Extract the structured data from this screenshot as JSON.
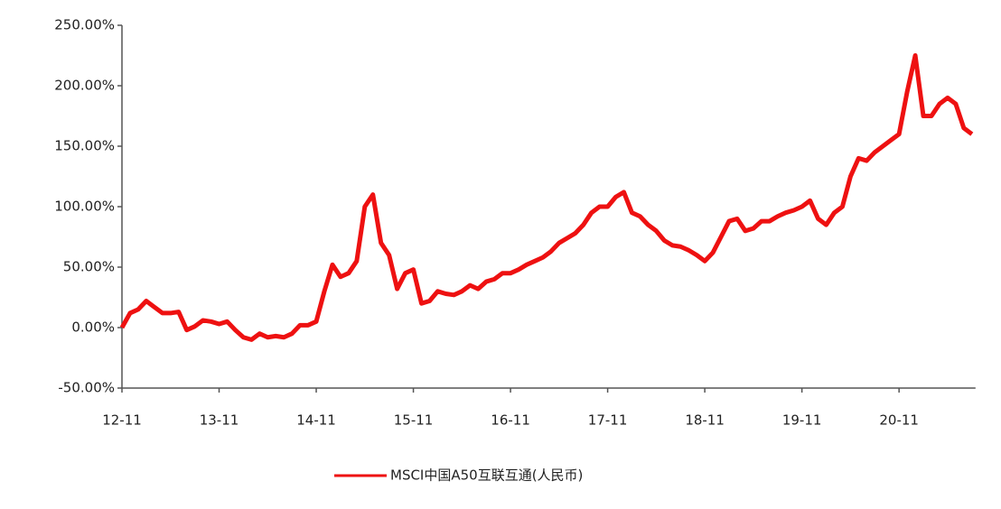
{
  "chart_data": {
    "type": "line",
    "categories": [
      "12-11",
      null,
      null,
      null,
      null,
      null,
      null,
      null,
      null,
      null,
      null,
      null,
      "13-11",
      null,
      null,
      null,
      null,
      null,
      null,
      null,
      null,
      null,
      null,
      null,
      "14-11",
      null,
      null,
      null,
      null,
      null,
      null,
      null,
      null,
      null,
      null,
      null,
      "15-11",
      null,
      null,
      null,
      null,
      null,
      null,
      null,
      null,
      null,
      null,
      null,
      "16-11",
      null,
      null,
      null,
      null,
      null,
      null,
      null,
      null,
      null,
      null,
      null,
      "17-11",
      null,
      null,
      null,
      null,
      null,
      null,
      null,
      null,
      null,
      null,
      null,
      "18-11",
      null,
      null,
      null,
      null,
      null,
      null,
      null,
      null,
      null,
      null,
      null,
      "19-11",
      null,
      null,
      null,
      null,
      null,
      null,
      null,
      null,
      null,
      null,
      null,
      "20-11",
      null,
      null,
      null,
      null,
      null,
      null,
      null,
      null,
      null
    ],
    "series": [
      {
        "name": "MSCI中国A50互联互通(人民币)",
        "color": "#ee1111",
        "values": [
          0,
          12,
          15,
          22,
          17,
          12,
          12,
          13,
          -2,
          1,
          6,
          5,
          3,
          5,
          -2,
          -8,
          -10,
          -5,
          -8,
          -7,
          -8,
          -5,
          2,
          2,
          5,
          30,
          52,
          42,
          45,
          55,
          100,
          110,
          70,
          60,
          32,
          45,
          48,
          20,
          22,
          30,
          28,
          27,
          30,
          35,
          32,
          38,
          40,
          45,
          45,
          48,
          52,
          55,
          58,
          63,
          70,
          74,
          78,
          85,
          95,
          100,
          100,
          108,
          112,
          95,
          92,
          85,
          80,
          72,
          68,
          67,
          64,
          60,
          55,
          62,
          75,
          88,
          90,
          80,
          82,
          88,
          88,
          92,
          95,
          97,
          100,
          105,
          90,
          85,
          95,
          100,
          125,
          140,
          138,
          145,
          150,
          155,
          160,
          195,
          225,
          175,
          175,
          185,
          190,
          185,
          165,
          160
        ]
      }
    ],
    "ylim": [
      -50,
      250
    ],
    "yticks": [
      {
        "value": -50,
        "label": "-50.00%"
      },
      {
        "value": 0,
        "label": "0.00%"
      },
      {
        "value": 50,
        "label": "50.00%"
      },
      {
        "value": 100,
        "label": "100.00%"
      },
      {
        "value": 150,
        "label": "150.00%"
      },
      {
        "value": 200,
        "label": "200.00%"
      },
      {
        "value": 250,
        "label": "250.00%"
      }
    ],
    "legend": "bottom"
  }
}
